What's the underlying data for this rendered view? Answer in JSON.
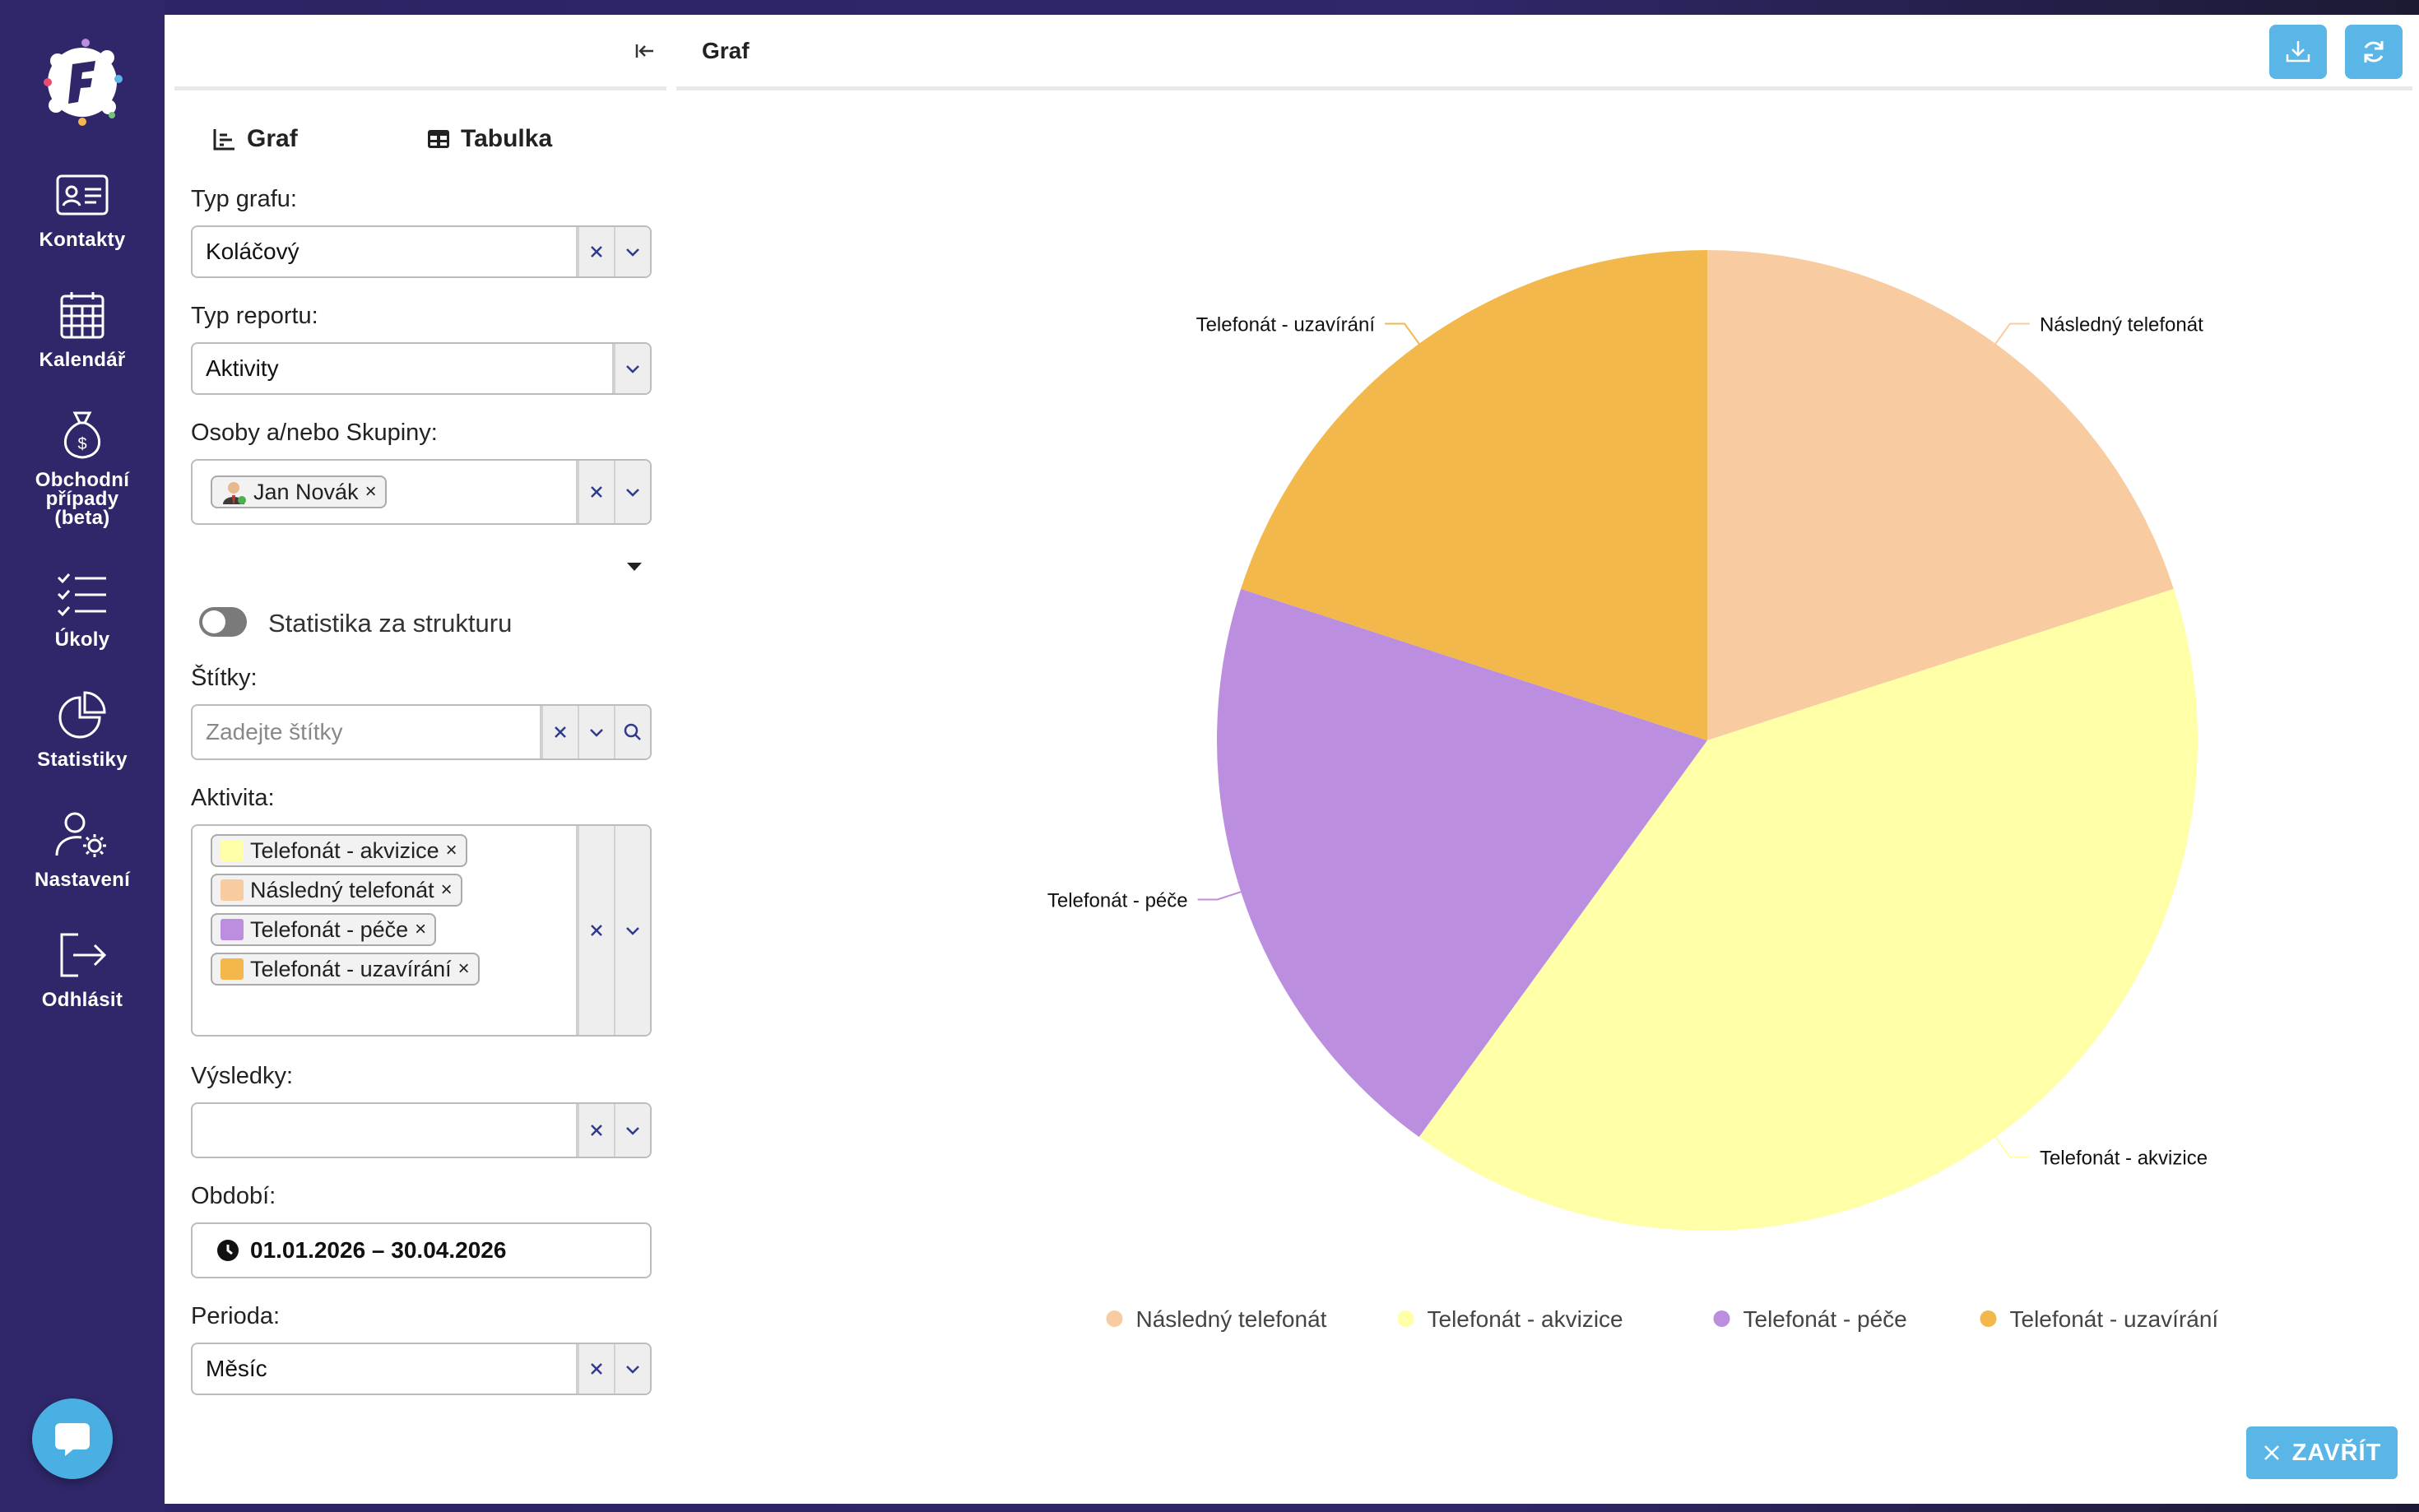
{
  "nav": {
    "items": [
      {
        "label": "Kontakty",
        "icon": "contact-card-icon"
      },
      {
        "label": "Kalendář",
        "icon": "calendar-icon"
      },
      {
        "label": "Obchodní případy (beta)",
        "icon": "money-bag-icon"
      },
      {
        "label": "Úkoly",
        "icon": "checklist-icon"
      },
      {
        "label": "Statistiky",
        "icon": "pie-chart-icon"
      },
      {
        "label": "Nastavení",
        "icon": "user-gear-icon"
      },
      {
        "label": "Odhlásit",
        "icon": "logout-icon"
      }
    ]
  },
  "panel": {
    "tabs": {
      "graph": "Graf",
      "table": "Tabulka"
    },
    "chart_type": {
      "label": "Typ grafu:",
      "value": "Koláčový"
    },
    "report_type": {
      "label": "Typ reportu:",
      "value": "Aktivity"
    },
    "persons": {
      "label": "Osoby a/nebo Skupiny:",
      "chips": [
        "Jan Novák"
      ]
    },
    "structure_toggle": {
      "label": "Statistika za strukturu",
      "on": false
    },
    "tags": {
      "label": "Štítky:",
      "placeholder": "Zadejte štítky"
    },
    "activity": {
      "label": "Aktivita:",
      "chips": [
        {
          "label": "Telefonát - akvizice",
          "color": "#ffffa8"
        },
        {
          "label": "Následný telefonát",
          "color": "#f8cca0"
        },
        {
          "label": "Telefonát - péče",
          "color": "#bc8ee0"
        },
        {
          "label": "Telefonát - uzavírání",
          "color": "#f2b84c"
        }
      ]
    },
    "results": {
      "label": "Výsledky:",
      "value": ""
    },
    "period_range": {
      "label": "Období:",
      "value": "01.01.2026 – 30.04.2026"
    },
    "period": {
      "label": "Perioda:",
      "value": "Měsíc"
    }
  },
  "chart_header": {
    "title": "Graf"
  },
  "close_button": {
    "label": "ZAVŘÍT"
  },
  "chart_data": {
    "type": "pie",
    "categories": [
      "Následný telefonát",
      "Telefonát - akvizice",
      "Telefonát - péče",
      "Telefonát - uzavírání"
    ],
    "values": [
      20,
      40,
      20,
      20
    ],
    "colors": [
      "#f8cca0",
      "#ffffa8",
      "#bc8ee0",
      "#f2b84c"
    ],
    "start_angle_deg": 0,
    "legend": "bottom"
  }
}
